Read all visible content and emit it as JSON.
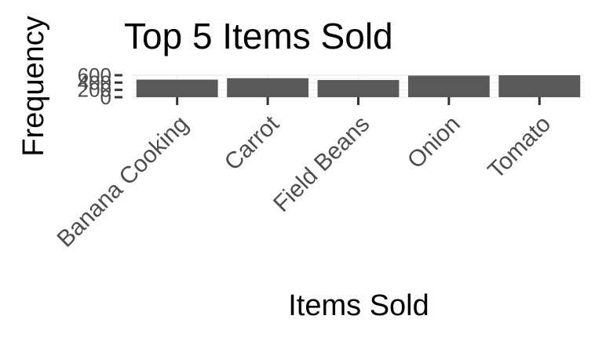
{
  "chart_data": {
    "type": "bar",
    "title": "Top 5 Items Sold",
    "xlabel": "Items Sold",
    "ylabel": "Frequency",
    "categories": [
      "Banana Cooking",
      "Carrot",
      "Field Beans",
      "Onion",
      "Tomato"
    ],
    "values": [
      480,
      520,
      470,
      590,
      600
    ],
    "ylim": [
      0,
      600
    ],
    "yticks": [
      0,
      200,
      400,
      600
    ],
    "ytick_labels": [
      "0",
      "200",
      "400",
      "600"
    ],
    "grid": true,
    "legend": "none",
    "colors": {
      "bar": "#595959",
      "tick_text": "#4d4d4d",
      "grid": "#ebebeb"
    }
  }
}
